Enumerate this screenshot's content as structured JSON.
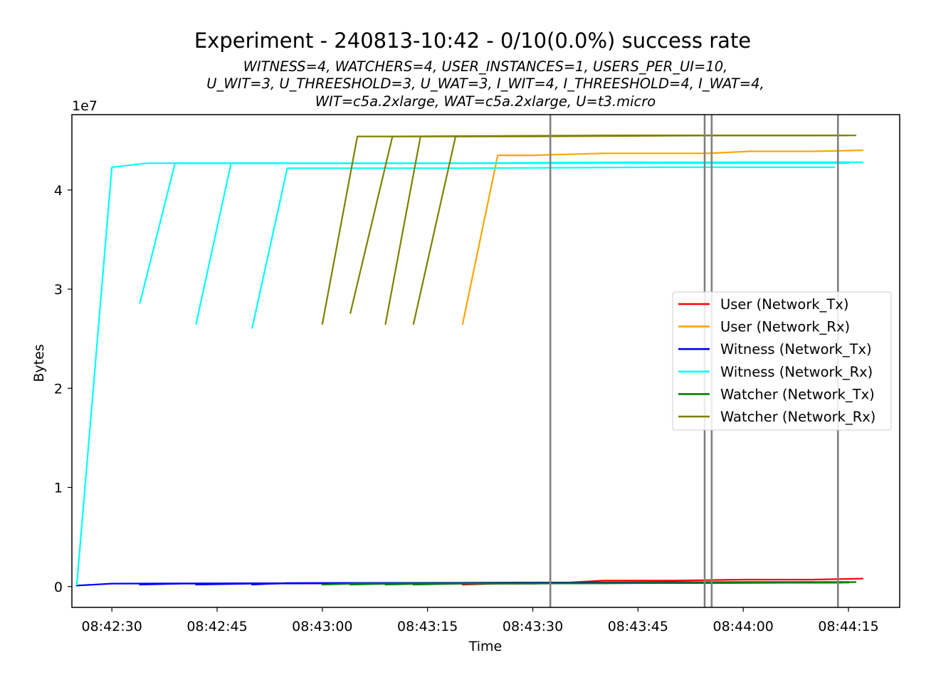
{
  "chart_data": {
    "type": "line",
    "title": "Experiment - 240813-10:42 - 0/10(0.0%) success rate",
    "subtitle_lines": [
      "WITNESS=4, WATCHERS=4, USER_INSTANCES=1, USERS_PER_UI=10,",
      "U_WIT=3, U_THREESHOLD=3, U_WAT=3, I_WIT=4, I_THREESHOLD=4, I_WAT=4,",
      "WIT=c5a.2xlarge, WAT=c5a.2xlarge, U=t3.micro"
    ],
    "xlabel": "Time",
    "ylabel": "Bytes",
    "y_offset_label": "1e7",
    "xlim": [
      "08:42:24.3",
      "08:44:22.3"
    ],
    "ylim": [
      -2100000,
      47600000
    ],
    "x_ticks": [
      "08:42:30",
      "08:42:45",
      "08:43:00",
      "08:43:15",
      "08:43:30",
      "08:43:45",
      "08:44:00",
      "08:44:15"
    ],
    "y_ticks": [
      {
        "value": 0,
        "label": "0"
      },
      {
        "value": 10000000,
        "label": "1"
      },
      {
        "value": 20000000,
        "label": "2"
      },
      {
        "value": 30000000,
        "label": "3"
      },
      {
        "value": 40000000,
        "label": "4"
      }
    ],
    "grid": false,
    "legend_position": "center-right",
    "vertical_markers": [
      "08:43:32.5",
      "08:43:54.5",
      "08:43:55.5",
      "08:44:13.5"
    ],
    "marker_color": "#808080",
    "series": [
      {
        "name": "User (Network_Tx)",
        "color": "#ff0000",
        "segments": [
          [
            [
              "08:43:20",
              200000
            ],
            [
              "08:43:25",
              300000
            ],
            [
              "08:43:30",
              300000
            ],
            [
              "08:43:35",
              400000
            ],
            [
              "08:43:40",
              600000
            ],
            [
              "08:43:45",
              600000
            ],
            [
              "08:43:50",
              600000
            ],
            [
              "08:43:55",
              650000
            ],
            [
              "08:44:00",
              700000
            ],
            [
              "08:44:05",
              700000
            ],
            [
              "08:44:10",
              700000
            ],
            [
              "08:44:17",
              800000
            ]
          ]
        ]
      },
      {
        "name": "User (Network_Rx)",
        "color": "#ffa500",
        "segments": [
          [
            [
              "08:43:20",
              26500000
            ],
            [
              "08:43:25",
              43500000
            ],
            [
              "08:43:30",
              43500000
            ],
            [
              "08:43:35",
              43600000
            ],
            [
              "08:43:40",
              43700000
            ],
            [
              "08:43:45",
              43700000
            ],
            [
              "08:43:50",
              43700000
            ],
            [
              "08:43:55",
              43700000
            ],
            [
              "08:44:01",
              43900000
            ],
            [
              "08:44:05",
              43900000
            ],
            [
              "08:44:10",
              43900000
            ],
            [
              "08:44:17",
              44000000
            ]
          ]
        ]
      },
      {
        "name": "Witness (Network_Tx)",
        "color": "#0000ff",
        "segments": [
          [
            [
              "08:42:25",
              100000
            ],
            [
              "08:42:30",
              300000
            ],
            [
              "08:43:00",
              350000
            ],
            [
              "08:43:30",
              400000
            ],
            [
              "08:44:00",
              450000
            ],
            [
              "08:44:15",
              450000
            ]
          ],
          [
            [
              "08:42:34",
              200000
            ],
            [
              "08:42:40",
              300000
            ],
            [
              "08:43:10",
              350000
            ],
            [
              "08:43:40",
              400000
            ],
            [
              "08:44:10",
              450000
            ]
          ],
          [
            [
              "08:42:42",
              200000
            ],
            [
              "08:42:50",
              300000
            ],
            [
              "08:43:20",
              350000
            ],
            [
              "08:43:50",
              400000
            ],
            [
              "08:44:14",
              450000
            ]
          ],
          [
            [
              "08:42:50",
              200000
            ],
            [
              "08:42:55",
              350000
            ],
            [
              "08:43:25",
              380000
            ],
            [
              "08:43:55",
              420000
            ],
            [
              "08:44:12",
              450000
            ]
          ]
        ]
      },
      {
        "name": "Witness (Network_Rx)",
        "color": "#00ffff",
        "segments": [
          [
            [
              "08:42:25",
              200000
            ],
            [
              "08:42:30",
              42300000
            ],
            [
              "08:42:35",
              42700000
            ],
            [
              "08:43:00",
              42700000
            ],
            [
              "08:43:30",
              42700000
            ],
            [
              "08:44:00",
              42700000
            ],
            [
              "08:44:15",
              42700000
            ]
          ],
          [
            [
              "08:42:34",
              28600000
            ],
            [
              "08:42:39",
              42700000
            ],
            [
              "08:43:00",
              42700000
            ],
            [
              "08:43:30",
              42700000
            ],
            [
              "08:44:00",
              42800000
            ],
            [
              "08:44:15",
              42800000
            ]
          ],
          [
            [
              "08:42:42",
              26500000
            ],
            [
              "08:42:47",
              42700000
            ],
            [
              "08:43:15",
              42700000
            ],
            [
              "08:43:45",
              42800000
            ],
            [
              "08:44:17",
              42800000
            ]
          ],
          [
            [
              "08:42:50",
              26100000
            ],
            [
              "08:42:55",
              42200000
            ],
            [
              "08:43:20",
              42200000
            ],
            [
              "08:43:50",
              42300000
            ],
            [
              "08:44:13",
              42300000
            ]
          ]
        ]
      },
      {
        "name": "Watcher (Network_Tx)",
        "color": "#008000",
        "segments": [
          [
            [
              "08:43:00",
              200000
            ],
            [
              "08:43:05",
              300000
            ],
            [
              "08:43:30",
              300000
            ],
            [
              "08:44:00",
              400000
            ],
            [
              "08:44:16",
              450000
            ]
          ],
          [
            [
              "08:43:04",
              200000
            ],
            [
              "08:43:10",
              300000
            ],
            [
              "08:43:40",
              350000
            ],
            [
              "08:44:10",
              400000
            ]
          ],
          [
            [
              "08:43:09",
              200000
            ],
            [
              "08:43:15",
              300000
            ],
            [
              "08:43:45",
              350000
            ],
            [
              "08:44:14",
              400000
            ]
          ],
          [
            [
              "08:43:13",
              200000
            ],
            [
              "08:43:20",
              300000
            ],
            [
              "08:43:50",
              350000
            ],
            [
              "08:44:15",
              400000
            ]
          ]
        ]
      },
      {
        "name": "Watcher (Network_Rx)",
        "color": "#808000",
        "segments": [
          [
            [
              "08:43:00",
              26500000
            ],
            [
              "08:43:05",
              45400000
            ],
            [
              "08:43:30",
              45400000
            ],
            [
              "08:44:00",
              45500000
            ],
            [
              "08:44:16",
              45500000
            ]
          ],
          [
            [
              "08:43:04",
              27600000
            ],
            [
              "08:43:10",
              45400000
            ],
            [
              "08:43:40",
              45500000
            ],
            [
              "08:44:10",
              45500000
            ]
          ],
          [
            [
              "08:43:09",
              26500000
            ],
            [
              "08:43:14",
              45400000
            ],
            [
              "08:43:45",
              45500000
            ],
            [
              "08:44:14",
              45500000
            ]
          ],
          [
            [
              "08:43:13",
              26500000
            ],
            [
              "08:43:19",
              45400000
            ],
            [
              "08:43:50",
              45500000
            ],
            [
              "08:44:15",
              45500000
            ]
          ]
        ]
      }
    ]
  }
}
